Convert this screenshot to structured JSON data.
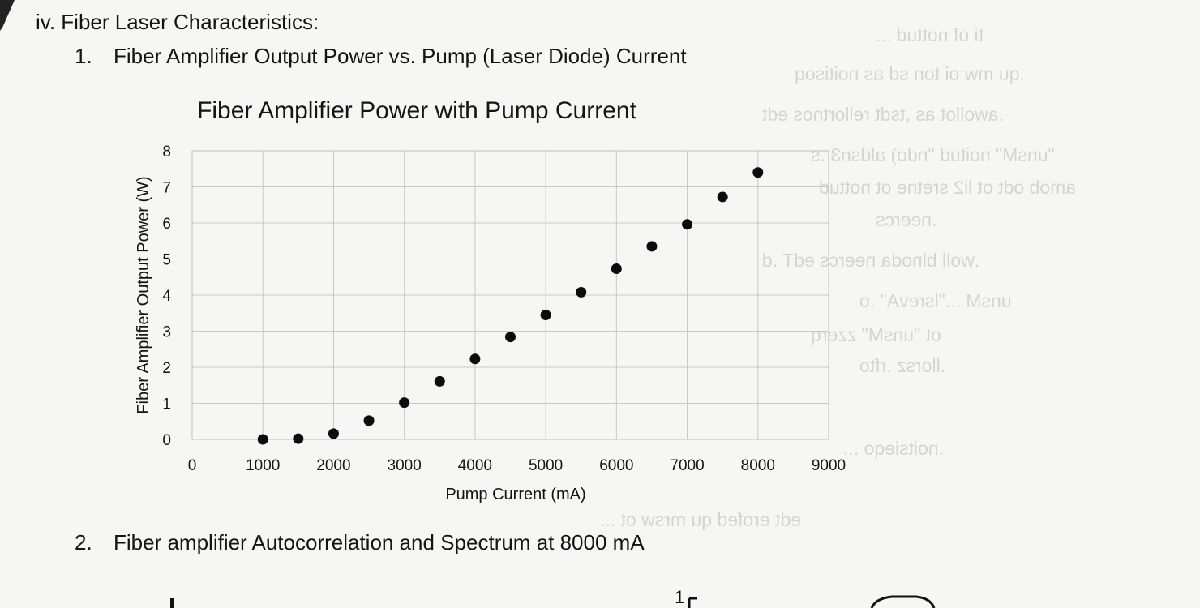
{
  "section": {
    "title": "iv. Fiber Laser Characteristics:"
  },
  "item1": {
    "number": "1.",
    "title": "Fiber Amplifier Output Power vs. Pump (Laser Diode) Current"
  },
  "item2": {
    "number": "2.",
    "title": "Fiber amplifier Autocorrelation and Spectrum at 8000 mA"
  },
  "bottom": {
    "axis_label": "1"
  },
  "colors": {
    "marker": "#0c0c0c",
    "grid": "#c8c8c8",
    "text": "#141414",
    "ghost": "#b9b9b9"
  },
  "chart_data": {
    "type": "scatter",
    "title": "Fiber Amplifier Power with Pump Current",
    "xlabel": "Pump Current (mA)",
    "ylabel": "Fiber Amplifier Output Power (W)",
    "xlim": [
      0,
      9000
    ],
    "ylim": [
      0,
      8
    ],
    "xticks": [
      "0",
      "1000",
      "2000",
      "3000",
      "4000",
      "5000",
      "6000",
      "7000",
      "8000",
      "9000"
    ],
    "yticks": [
      "0",
      "1",
      "2",
      "3",
      "4",
      "5",
      "6",
      "7",
      "8"
    ],
    "grid": true,
    "legend": "none",
    "x": [
      1000,
      1500,
      2000,
      2500,
      3000,
      3500,
      4000,
      4500,
      5000,
      5500,
      6000,
      6500,
      7000,
      7500,
      8000
    ],
    "y": [
      0,
      0.02,
      0.16,
      0.52,
      1.02,
      1.61,
      2.23,
      2.84,
      3.45,
      4.08,
      4.73,
      5.35,
      5.96,
      6.72,
      7.4
    ]
  }
}
